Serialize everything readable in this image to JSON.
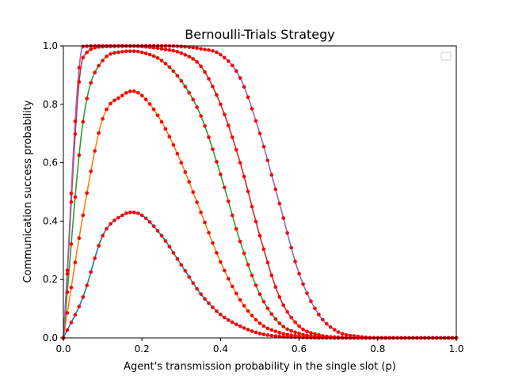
{
  "chart_data": {
    "type": "line",
    "title": "Bernoulli-Trials Strategy",
    "xlabel": "Agent's transmission probability in the single slot (p)",
    "ylabel": "Communication success probability",
    "xlim": [
      0.0,
      1.0
    ],
    "ylim": [
      0.0,
      1.0
    ],
    "xticks": [
      "0.0",
      "0.2",
      "0.4",
      "0.6",
      "0.8",
      "1.0"
    ],
    "yticks": [
      "0.0",
      "0.2",
      "0.4",
      "0.6",
      "0.8",
      "1.0"
    ],
    "grid": false,
    "legend": {
      "placement": "top-right",
      "entries": []
    },
    "marker_color": "#ff0000",
    "x": [
      0.0,
      0.05,
      0.1,
      0.15,
      0.175,
      0.2,
      0.25,
      0.3,
      0.35,
      0.4,
      0.45,
      0.5,
      0.55,
      0.6,
      0.65,
      0.7,
      0.75,
      0.8,
      0.85,
      0.9,
      0.95,
      1.0
    ],
    "series": [
      {
        "color": "#1f77b4",
        "values": [
          0.0,
          0.14,
          0.35,
          0.42,
          0.43,
          0.42,
          0.35,
          0.25,
          0.15,
          0.08,
          0.04,
          0.015,
          0.005,
          0.002,
          0.0,
          0.0,
          0.0,
          0.0,
          0.0,
          0.0,
          0.0,
          0.0
        ]
      },
      {
        "color": "#ff7f0e",
        "values": [
          0.0,
          0.42,
          0.75,
          0.83,
          0.845,
          0.83,
          0.74,
          0.6,
          0.43,
          0.26,
          0.13,
          0.05,
          0.018,
          0.006,
          0.002,
          0.0,
          0.0,
          0.0,
          0.0,
          0.0,
          0.0,
          0.0
        ]
      },
      {
        "color": "#2ca02c",
        "values": [
          0.0,
          0.74,
          0.95,
          0.98,
          0.982,
          0.978,
          0.95,
          0.88,
          0.76,
          0.56,
          0.33,
          0.15,
          0.05,
          0.015,
          0.004,
          0.001,
          0.0,
          0.0,
          0.0,
          0.0,
          0.0,
          0.0
        ]
      },
      {
        "color": "#d62728",
        "values": [
          0.0,
          0.96,
          0.997,
          0.999,
          0.999,
          0.998,
          0.99,
          0.975,
          0.93,
          0.8,
          0.6,
          0.35,
          0.14,
          0.04,
          0.01,
          0.002,
          0.0,
          0.0,
          0.0,
          0.0,
          0.0,
          0.0
        ]
      },
      {
        "color": "#9467bd",
        "values": [
          0.0,
          0.998,
          1.0,
          1.0,
          1.0,
          1.0,
          1.0,
          0.998,
          0.99,
          0.97,
          0.89,
          0.7,
          0.46,
          0.22,
          0.08,
          0.02,
          0.005,
          0.0,
          0.0,
          0.0,
          0.0,
          0.0
        ]
      }
    ]
  }
}
